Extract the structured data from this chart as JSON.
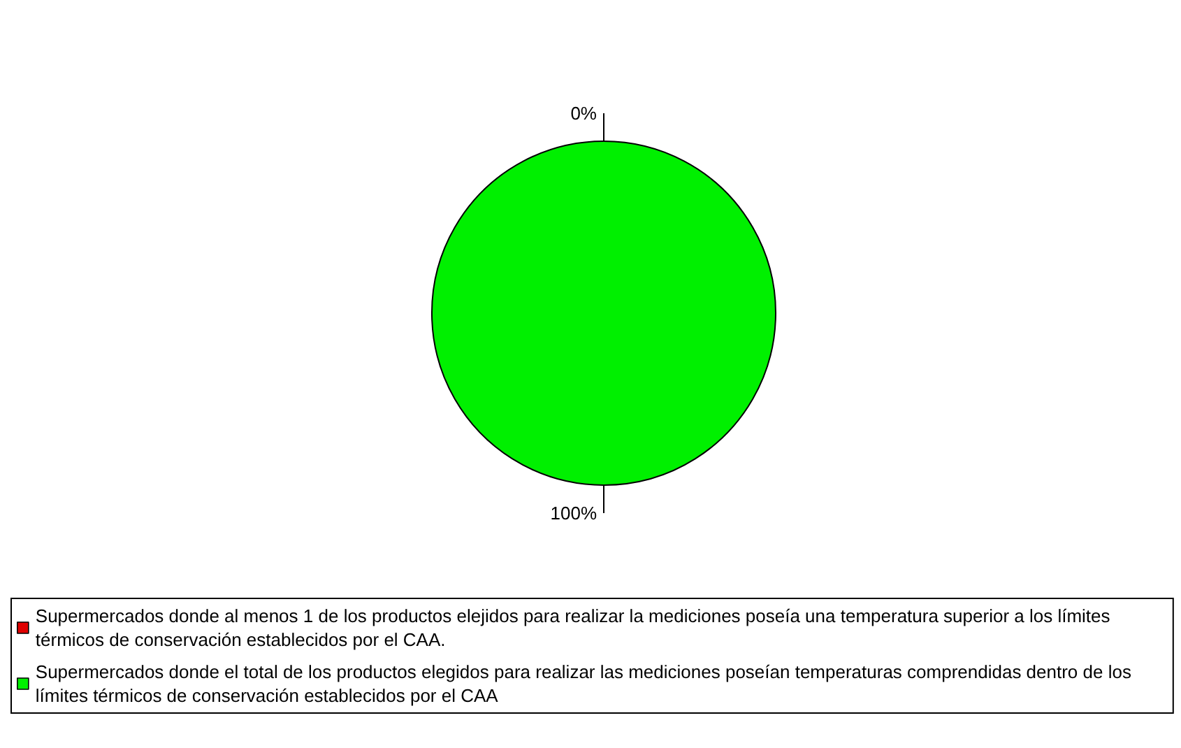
{
  "chart_data": {
    "type": "pie",
    "categories": [
      "Supermercados donde al menos 1 de los productos elejidos para realizar la mediciones poseía una temperatura superior a los límites térmicos de conservación establecidos por el CAA.",
      "Supermercados donde el total de los productos elegidos para realizar las mediciones poseían temperaturas comprendidas dentro de los límites térmicos de conservación establecidos por el CAA"
    ],
    "values": [
      0,
      100
    ],
    "colors": [
      "#e00000",
      "#00f000"
    ],
    "value_labels": [
      "0%",
      "100%"
    ],
    "legend": "bottom"
  }
}
